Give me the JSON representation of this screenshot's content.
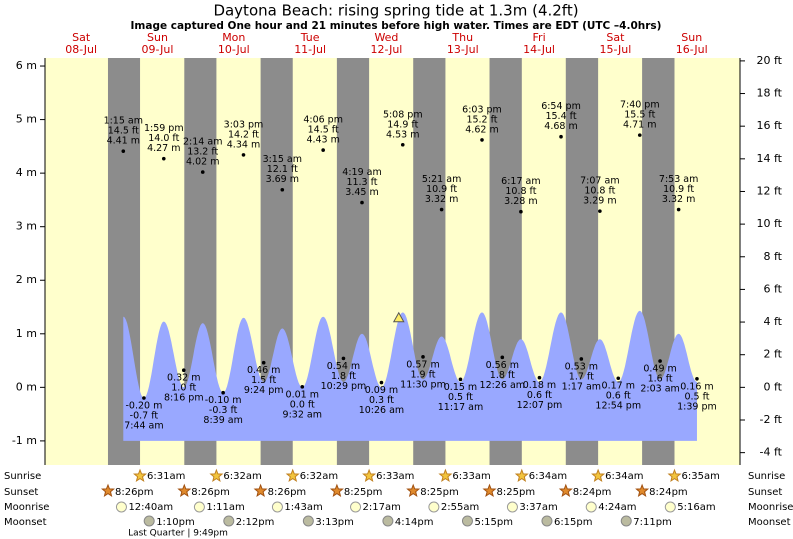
{
  "chart_data": {
    "type": "tide",
    "title": "Daytona Beach: rising  spring tide at 1.3m (4.2ft)",
    "subtitle": "Image captured One hour and 21 minutes before high water. Times are EDT (UTC –4.0hrs)",
    "ylim": [
      -1.45,
      6.15
    ],
    "yticks": [
      {
        "value": 6,
        "label": "6 m"
      },
      {
        "value": 5,
        "label": "5 m"
      },
      {
        "value": 4,
        "label": "4 m"
      },
      {
        "value": 3,
        "label": "3 m"
      },
      {
        "value": 2,
        "label": "2 m"
      },
      {
        "value": 1,
        "label": "1 m"
      },
      {
        "value": 0,
        "label": "0 m"
      },
      {
        "value": -1,
        "label": "-1 m"
      }
    ],
    "y2lim": [
      -4.757,
      20.177
    ],
    "y2ticks": [
      {
        "value": 20,
        "label": "20 ft"
      },
      {
        "value": 18,
        "label": "18 ft"
      },
      {
        "value": 16,
        "label": "16 ft"
      },
      {
        "value": 14,
        "label": "14 ft"
      },
      {
        "value": 12,
        "label": "12 ft"
      },
      {
        "value": 10,
        "label": "10 ft"
      },
      {
        "value": 8,
        "label": "8 ft"
      },
      {
        "value": 6,
        "label": "6 ft"
      },
      {
        "value": 4,
        "label": "4 ft"
      },
      {
        "value": 2,
        "label": "2 ft"
      },
      {
        "value": 0,
        "label": "0 ft"
      },
      {
        "value": -2,
        "label": "-2 ft"
      },
      {
        "value": -4,
        "label": "-4 ft"
      }
    ],
    "now": 1.3,
    "row_labels": {
      "sunrise": "Sunrise",
      "sunset": "Sunset",
      "moonrise": "Moonrise",
      "moonset": "Moonset"
    },
    "moon_phase": "Last Quarter | 9:49pm",
    "days": [
      {
        "name": "Sat",
        "date": "08-Jul",
        "sunset": "8:26pm",
        "tides": []
      },
      {
        "name": "Sun",
        "date": "09-Jul",
        "sunrise": "6:31am",
        "sunset": "8:26pm",
        "moonrise": "12:40am",
        "moonset": "1:10pm",
        "tides": [
          {
            "time": "1:15 am",
            "value": 4.41,
            "value_label": "4.41 m",
            "ft_label": "14.5 ft",
            "curve": 1.32
          },
          {
            "time": "7:44 am",
            "value": -0.2,
            "value_label": "-0.20 m",
            "ft_label": "-0.7 ft",
            "curve": -0.2
          },
          {
            "time": "1:59 pm",
            "value": 4.27,
            "value_label": "4.27 m",
            "ft_label": "14.0 ft",
            "curve": 1.23
          },
          {
            "time": "8:16 pm",
            "value": 0.32,
            "value_label": "0.32 m",
            "ft_label": "1.0 ft",
            "curve": 0.0
          }
        ]
      },
      {
        "name": "Mon",
        "date": "10-Jul",
        "sunrise": "6:32am",
        "sunset": "8:26pm",
        "moonrise": "1:11am",
        "moonset": "2:12pm",
        "tides": [
          {
            "time": "2:14 am",
            "value": 4.02,
            "value_label": "4.02 m",
            "ft_label": "13.2 ft",
            "curve": 1.2
          },
          {
            "time": "8:39 am",
            "value": -0.1,
            "value_label": "-0.10 m",
            "ft_label": "-0.3 ft",
            "curve": -0.1
          },
          {
            "time": "3:03 pm",
            "value": 4.34,
            "value_label": "4.34 m",
            "ft_label": "14.2 ft",
            "curve": 1.3
          },
          {
            "time": "9:24 pm",
            "value": 0.46,
            "value_label": "0.46 m",
            "ft_label": "1.5 ft",
            "curve": 0.1
          }
        ]
      },
      {
        "name": "Tue",
        "date": "11-Jul",
        "sunrise": "6:32am",
        "sunset": "8:25pm",
        "moonrise": "1:43am",
        "moonset": "3:13pm",
        "tides": [
          {
            "time": "3:15 am",
            "value": 3.69,
            "value_label": "3.69 m",
            "ft_label": "12.1 ft",
            "curve": 1.1
          },
          {
            "time": "9:32 am",
            "value": 0.01,
            "value_label": "0.01 m",
            "ft_label": "0.0 ft",
            "curve": 0.0
          },
          {
            "time": "4:06 pm",
            "value": 4.43,
            "value_label": "4.43 m",
            "ft_label": "14.5 ft",
            "curve": 1.32
          },
          {
            "time": "10:29 pm",
            "value": 0.54,
            "value_label": "0.54 m",
            "ft_label": "1.8 ft",
            "curve": 0.1
          }
        ]
      },
      {
        "name": "Wed",
        "date": "12-Jul",
        "sunrise": "6:33am",
        "sunset": "8:25pm",
        "moonrise": "2:17am",
        "moonset": "4:14pm",
        "tides": [
          {
            "time": "4:19 am",
            "value": 3.45,
            "value_label": "3.45 m",
            "ft_label": "11.3 ft",
            "curve": 1.0
          },
          {
            "time": "10:26 am",
            "value": 0.09,
            "value_label": "0.09 m",
            "ft_label": "0.3 ft",
            "curve": 0.0
          },
          {
            "time": "5:08 pm",
            "value": 4.53,
            "value_label": "4.53 m",
            "ft_label": "14.9 ft",
            "curve": 1.4
          },
          {
            "time": "11:30 pm",
            "value": 0.57,
            "value_label": "0.57 m",
            "ft_label": "1.9 ft",
            "curve": 0.15
          }
        ]
      },
      {
        "name": "Thu",
        "date": "13-Jul",
        "sunrise": "6:33am",
        "sunset": "8:25pm",
        "moonrise": "2:55am",
        "moonset": "5:15pm",
        "tides": [
          {
            "time": "5:21 am",
            "value": 3.32,
            "value_label": "3.32 m",
            "ft_label": "10.9 ft",
            "curve": 0.95
          },
          {
            "time": "11:17 am",
            "value": 0.15,
            "value_label": "0.15 m",
            "ft_label": "0.5 ft",
            "curve": 0.1
          },
          {
            "time": "6:03 pm",
            "value": 4.62,
            "value_label": "4.62 m",
            "ft_label": "15.2 ft",
            "curve": 1.4
          }
        ]
      },
      {
        "name": "Fri",
        "date": "14-Jul",
        "sunrise": "6:34am",
        "sunset": "8:24pm",
        "moonrise": "3:37am",
        "moonset": "6:15pm",
        "tides": [
          {
            "time": "12:26 am",
            "value": 0.56,
            "value_label": "0.56 m",
            "ft_label": "1.8 ft",
            "curve": 0.15
          },
          {
            "time": "6:17 am",
            "value": 3.28,
            "value_label": "3.28 m",
            "ft_label": "10.8 ft",
            "curve": 0.9
          },
          {
            "time": "12:07 pm",
            "value": 0.18,
            "value_label": "0.18 m",
            "ft_label": "0.6 ft",
            "curve": 0.1
          },
          {
            "time": "6:54 pm",
            "value": 4.68,
            "value_label": "4.68 m",
            "ft_label": "15.4 ft",
            "curve": 1.4
          }
        ]
      },
      {
        "name": "Sat",
        "date": "15-Jul",
        "sunrise": "6:34am",
        "sunset": "8:24pm",
        "moonrise": "4:24am",
        "moonset": "7:11pm",
        "tides": [
          {
            "time": "1:17 am",
            "value": 0.53,
            "value_label": "0.53 m",
            "ft_label": "1.7 ft",
            "curve": 0.15
          },
          {
            "time": "7:07 am",
            "value": 3.29,
            "value_label": "3.29 m",
            "ft_label": "10.8 ft",
            "curve": 0.9
          },
          {
            "time": "12:54 pm",
            "value": 0.17,
            "value_label": "0.17 m",
            "ft_label": "0.6 ft",
            "curve": 0.1
          },
          {
            "time": "7:40 pm",
            "value": 4.71,
            "value_label": "4.71 m",
            "ft_label": "15.5 ft",
            "curve": 1.43
          }
        ]
      },
      {
        "name": "Sun",
        "date": "16-Jul",
        "sunrise": "6:35am",
        "moonrise": "5:16am",
        "tides": [
          {
            "time": "2:03 am",
            "value": 0.49,
            "value_label": "0.49 m",
            "ft_label": "1.6 ft",
            "curve": 0.15
          },
          {
            "time": "7:53 am",
            "value": 3.32,
            "value_label": "3.32 m",
            "ft_label": "10.9 ft",
            "curve": 1.0
          },
          {
            "time": "1:39 pm",
            "value": 0.16,
            "value_label": "0.16 m",
            "ft_label": "0.5 ft",
            "curve": 0.1
          }
        ]
      }
    ]
  }
}
